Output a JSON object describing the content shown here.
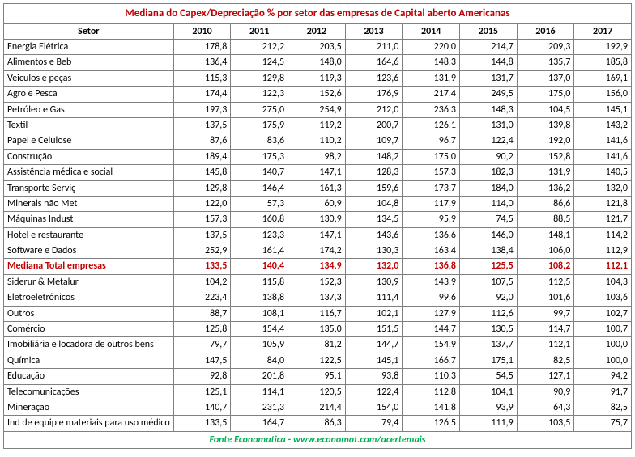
{
  "title": "Mediana do Capex/Depreciação % por setor das empresas de Capital aberto Americanas",
  "headers": {
    "sector": "Setor",
    "y2010": "2010",
    "y2011": "2011",
    "y2012": "2012",
    "y2013": "2013",
    "y2014": "2014",
    "y2015": "2015",
    "y2016": "2016",
    "y2017": "2017"
  },
  "rows": [
    {
      "s": "Energia Elétrica",
      "v": [
        "178,8",
        "212,2",
        "203,5",
        "211,0",
        "220,0",
        "214,7",
        "209,3",
        "192,9"
      ],
      "hl": false
    },
    {
      "s": "Alimentos e Beb",
      "v": [
        "136,4",
        "124,5",
        "148,0",
        "164,6",
        "148,3",
        "144,8",
        "135,7",
        "185,8"
      ],
      "hl": false
    },
    {
      "s": "Veiculos e peças",
      "v": [
        "115,3",
        "129,8",
        "119,3",
        "123,6",
        "131,9",
        "131,7",
        "137,0",
        "169,1"
      ],
      "hl": false
    },
    {
      "s": "Agro e Pesca",
      "v": [
        "174,4",
        "122,3",
        "152,6",
        "176,9",
        "217,4",
        "249,5",
        "175,0",
        "156,0"
      ],
      "hl": false
    },
    {
      "s": "Petróleo e Gas",
      "v": [
        "197,3",
        "275,0",
        "254,9",
        "212,0",
        "236,3",
        "148,3",
        "104,5",
        "145,1"
      ],
      "hl": false
    },
    {
      "s": "Textil",
      "v": [
        "137,5",
        "175,9",
        "119,2",
        "200,7",
        "126,1",
        "131,0",
        "139,8",
        "143,2"
      ],
      "hl": false
    },
    {
      "s": "Papel e Celulose",
      "v": [
        "87,6",
        "83,6",
        "110,2",
        "109,7",
        "96,7",
        "122,4",
        "192,0",
        "141,6"
      ],
      "hl": false
    },
    {
      "s": "Construção",
      "v": [
        "189,4",
        "175,3",
        "98,2",
        "148,2",
        "175,0",
        "90,2",
        "152,8",
        "141,6"
      ],
      "hl": false
    },
    {
      "s": "Assistência médica e social",
      "v": [
        "145,8",
        "140,7",
        "147,1",
        "128,3",
        "157,3",
        "182,3",
        "131,9",
        "140,5"
      ],
      "hl": false
    },
    {
      "s": "Transporte Serviç",
      "v": [
        "129,8",
        "146,4",
        "161,3",
        "159,6",
        "173,7",
        "184,0",
        "136,2",
        "132,0"
      ],
      "hl": false
    },
    {
      "s": "Minerais não Met",
      "v": [
        "122,0",
        "57,3",
        "60,9",
        "104,8",
        "117,9",
        "114,0",
        "86,6",
        "121,8"
      ],
      "hl": false
    },
    {
      "s": "Máquinas Indust",
      "v": [
        "157,3",
        "160,8",
        "130,9",
        "134,5",
        "95,9",
        "74,5",
        "88,5",
        "121,7"
      ],
      "hl": false
    },
    {
      "s": "Hotel e restaurante",
      "v": [
        "137,5",
        "123,3",
        "147,1",
        "143,6",
        "136,6",
        "146,0",
        "148,1",
        "114,2"
      ],
      "hl": false
    },
    {
      "s": "Software e Dados",
      "v": [
        "252,9",
        "161,4",
        "174,2",
        "130,3",
        "163,4",
        "138,4",
        "106,0",
        "112,9"
      ],
      "hl": false
    },
    {
      "s": "Mediana Total empresas",
      "v": [
        "133,5",
        "140,4",
        "134,9",
        "132,0",
        "136,8",
        "125,5",
        "108,2",
        "112,1"
      ],
      "hl": true
    },
    {
      "s": "Siderur & Metalur",
      "v": [
        "104,2",
        "115,8",
        "152,3",
        "130,9",
        "143,9",
        "107,5",
        "112,5",
        "104,3"
      ],
      "hl": false
    },
    {
      "s": "Eletroeletrônicos",
      "v": [
        "223,4",
        "138,8",
        "137,3",
        "111,4",
        "99,6",
        "92,0",
        "101,6",
        "103,6"
      ],
      "hl": false
    },
    {
      "s": "Outros",
      "v": [
        "88,7",
        "108,1",
        "116,7",
        "102,1",
        "127,9",
        "112,6",
        "99,7",
        "102,7"
      ],
      "hl": false
    },
    {
      "s": "Comércio",
      "v": [
        "125,8",
        "154,4",
        "135,0",
        "151,5",
        "144,7",
        "130,5",
        "114,7",
        "100,7"
      ],
      "hl": false
    },
    {
      "s": "Imobiliária e locadora de outros bens",
      "v": [
        "79,7",
        "105,9",
        "81,2",
        "144,7",
        "154,9",
        "137,7",
        "112,1",
        "100,0"
      ],
      "hl": false
    },
    {
      "s": "Química",
      "v": [
        "147,5",
        "84,0",
        "122,5",
        "145,1",
        "166,7",
        "175,1",
        "82,5",
        "100,0"
      ],
      "hl": false
    },
    {
      "s": "Educação",
      "v": [
        "92,8",
        "201,8",
        "95,1",
        "93,8",
        "110,3",
        "54,5",
        "127,1",
        "94,2"
      ],
      "hl": false
    },
    {
      "s": "Telecomunicações",
      "v": [
        "125,1",
        "114,1",
        "120,5",
        "122,4",
        "112,8",
        "104,1",
        "90,9",
        "91,7"
      ],
      "hl": false
    },
    {
      "s": "Mineração",
      "v": [
        "140,7",
        "231,3",
        "214,4",
        "154,0",
        "141,8",
        "93,9",
        "64,3",
        "82,5"
      ],
      "hl": false
    },
    {
      "s": "Ind de equip e materiais para uso médico",
      "v": [
        "133,5",
        "164,7",
        "86,3",
        "79,4",
        "126,5",
        "111,9",
        "103,5",
        "75,7"
      ],
      "hl": false
    }
  ],
  "source": "Fonte Economatica - www.economat.com/acertemais"
}
